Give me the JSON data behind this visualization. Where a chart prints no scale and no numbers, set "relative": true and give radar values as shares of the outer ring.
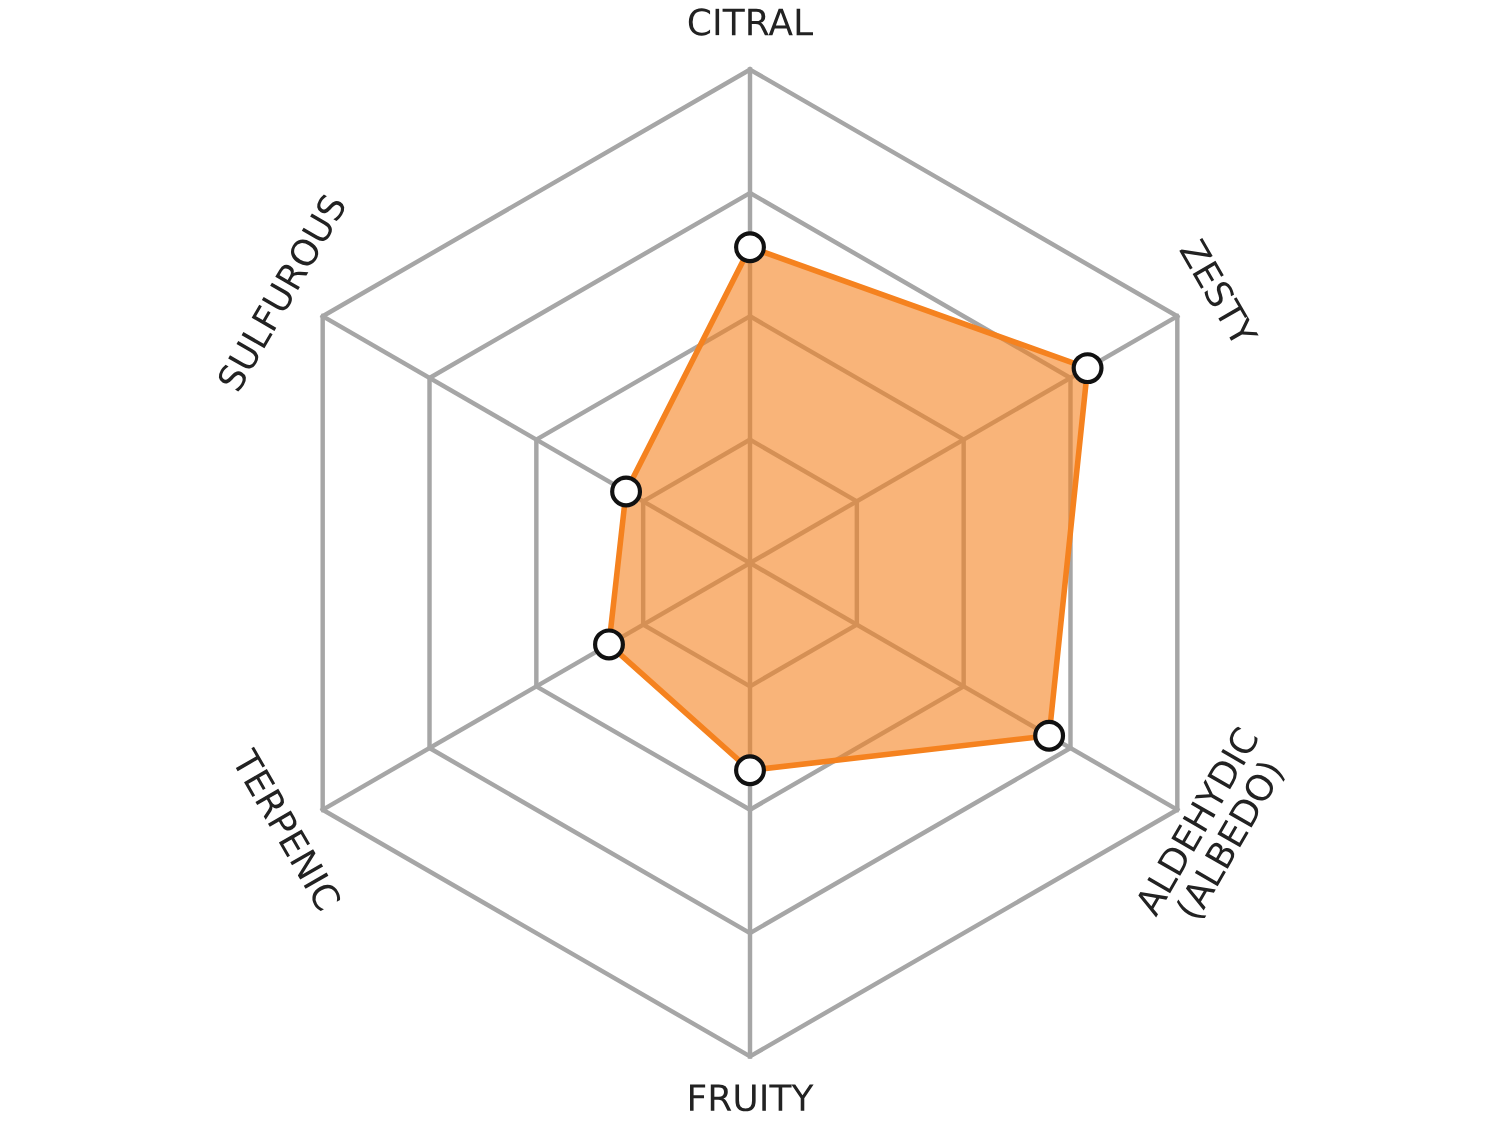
{
  "chart_data": {
    "type": "radar",
    "relative": true,
    "grid": true,
    "marker": "circle",
    "line_style": "solid",
    "categories": [
      "CITRAL",
      "ZESTY",
      "ALDEHYDIC\n(ALBEDO)",
      "FRUITY",
      "TERPENIC",
      "SULFUROUS"
    ],
    "series": [
      {
        "color": "#f5821f",
        "values": [
          0.64,
          0.79,
          0.7,
          0.42,
          0.33,
          0.29
        ]
      }
    ]
  }
}
